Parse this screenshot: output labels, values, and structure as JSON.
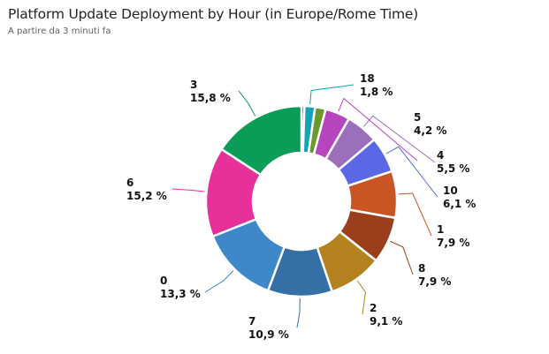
{
  "chart_data": {
    "type": "pie",
    "variant": "donut",
    "title": "Platform Update Deployment by Hour (in Europe/Rome Time)",
    "subtitle": "A partire da 3 minuti fa",
    "slices": [
      {
        "label": null,
        "value": 0.5,
        "display": null,
        "color": "#1e5f6c"
      },
      {
        "label": "18",
        "value": 1.8,
        "display": "1,8 %",
        "color": "#13a3b5"
      },
      {
        "label": null,
        "value": 1.8,
        "display": null,
        "color": "#6a9a2e"
      },
      {
        "label": "5",
        "value": 4.2,
        "display": "4,2 %",
        "color": "#b546bd"
      },
      {
        "label": "4",
        "value": 5.5,
        "display": "5,5 %",
        "color": "#9b70bb"
      },
      {
        "label": "10",
        "value": 6.1,
        "display": "6,1 %",
        "color": "#5a68e6"
      },
      {
        "label": "1",
        "value": 7.9,
        "display": "7,9 %",
        "color": "#c95424"
      },
      {
        "label": "8",
        "value": 7.9,
        "display": "7,9 %",
        "color": "#9b3e1c"
      },
      {
        "label": "2",
        "value": 9.1,
        "display": "9,1 %",
        "color": "#b3821e"
      },
      {
        "label": "7",
        "value": 10.9,
        "display": "10,9 %",
        "color": "#356fa6"
      },
      {
        "label": "0",
        "value": 13.3,
        "display": "13,3 %",
        "color": "#3d88c8"
      },
      {
        "label": "6",
        "value": 15.2,
        "display": "15,2 %",
        "color": "#e8309a"
      },
      {
        "label": "3",
        "value": 15.8,
        "display": "15,8 %",
        "color": "#0b9d58"
      }
    ]
  }
}
